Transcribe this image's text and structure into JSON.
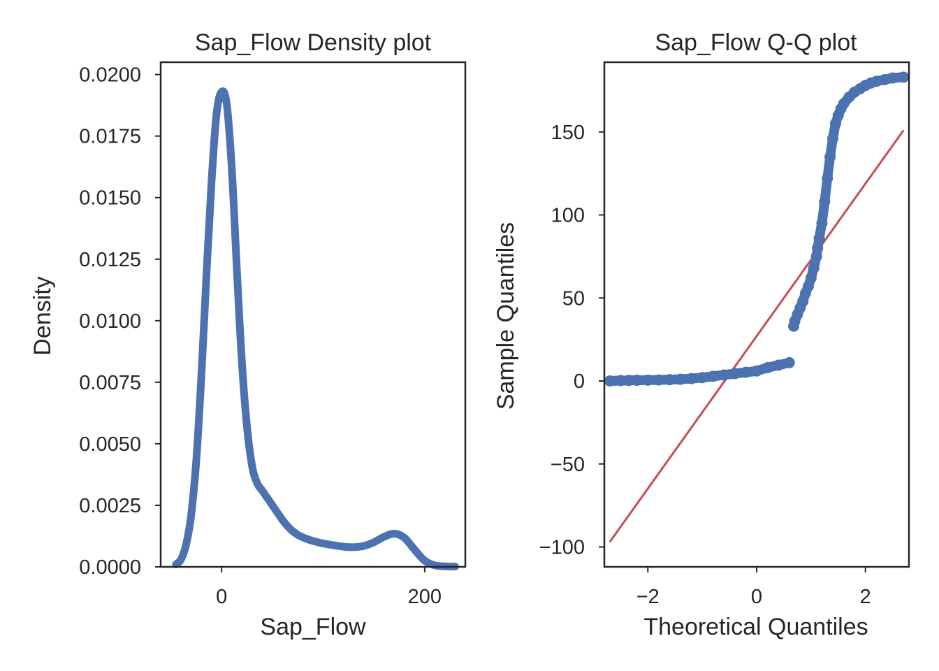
{
  "chart_data": [
    {
      "type": "line",
      "title": "Sap_Flow Density plot",
      "xlabel": "Sap_Flow",
      "ylabel": "Density",
      "xlim": [
        -60,
        240
      ],
      "ylim": [
        0,
        0.0205
      ],
      "xticks": [
        0,
        200
      ],
      "xtick_labels": [
        "0",
        "200"
      ],
      "yticks": [
        0,
        0.0025,
        0.005,
        0.0075,
        0.01,
        0.0125,
        0.015,
        0.0175,
        0.02
      ],
      "ytick_labels": [
        "0.0000",
        "0.0025",
        "0.0050",
        "0.0075",
        "0.0100",
        "0.0125",
        "0.0150",
        "0.0175",
        "0.0200"
      ],
      "grid": false,
      "color": "#4c72b0",
      "series": [
        {
          "x": [
            -45,
            -40,
            -35,
            -30,
            -25,
            -20,
            -15,
            -10,
            -5,
            0,
            5,
            10,
            15,
            20,
            25,
            30,
            35,
            40,
            45,
            50,
            55,
            60,
            65,
            70,
            75,
            80,
            85,
            90,
            100,
            110,
            120,
            130,
            140,
            150,
            160,
            170,
            180,
            190,
            200,
            210,
            220,
            230
          ],
          "values": [
            0.0001,
            0.0003,
            0.0009,
            0.0021,
            0.0043,
            0.0077,
            0.0118,
            0.0156,
            0.0184,
            0.0193,
            0.0188,
            0.0162,
            0.0121,
            0.0083,
            0.0057,
            0.0041,
            0.0034,
            0.0031,
            0.0028,
            0.0025,
            0.0022,
            0.0019,
            0.00165,
            0.00145,
            0.0013,
            0.0012,
            0.00112,
            0.00105,
            0.00095,
            0.00088,
            0.00082,
            0.0008,
            0.00085,
            0.001,
            0.00122,
            0.00135,
            0.00118,
            0.0007,
            0.00025,
            6e-05,
            2e-05,
            1e-05
          ]
        }
      ]
    },
    {
      "type": "scatter",
      "title": "Sap_Flow Q-Q plot",
      "xlabel": "Theoretical Quantiles",
      "ylabel": "Sample Quantiles",
      "xlim": [
        -2.8,
        2.8
      ],
      "ylim": [
        -112,
        192
      ],
      "xticks": [
        -2,
        0,
        2
      ],
      "xtick_labels": [
        "−2",
        "0",
        "2"
      ],
      "yticks": [
        -100,
        -50,
        0,
        50,
        100,
        150
      ],
      "ytick_labels": [
        "−100",
        "−50",
        "0",
        "50",
        "100",
        "150"
      ],
      "grid": false,
      "marker_color": "#4c72b0",
      "line_color": "#c44e52",
      "reference_line": {
        "x": [
          -2.7,
          2.7
        ],
        "y": [
          -97,
          151
        ]
      },
      "series": [
        {
          "x": [
            -2.7,
            -2.5,
            -2.35,
            -2.2,
            -2.0,
            -1.8,
            -1.6,
            -1.4,
            -1.2,
            -1.0,
            -0.8,
            -0.6,
            -0.4,
            -0.2,
            0.0,
            0.2,
            0.4,
            0.6,
            0.68,
            0.7,
            0.75,
            0.8,
            0.85,
            0.9,
            0.95,
            1.0,
            1.05,
            1.1,
            1.12,
            1.15,
            1.2,
            1.25,
            1.3,
            1.35,
            1.4,
            1.45,
            1.5,
            1.55,
            1.6,
            1.7,
            1.8,
            1.9,
            2.0,
            2.1,
            2.2,
            2.35,
            2.5,
            2.7
          ],
          "values": [
            0,
            0.2,
            0.3,
            0.4,
            0.5,
            0.6,
            0.8,
            1.0,
            1.4,
            2.0,
            2.8,
            3.6,
            4.4,
            5.2,
            6.0,
            8.0,
            9.5,
            11.0,
            33,
            36,
            40,
            44,
            48,
            53,
            57,
            62,
            68,
            75,
            80,
            86,
            95,
            108,
            122,
            135,
            146,
            155,
            160,
            164,
            167,
            171,
            174,
            176,
            178,
            179.5,
            180.5,
            181.5,
            182.5,
            183
          ]
        }
      ]
    }
  ]
}
